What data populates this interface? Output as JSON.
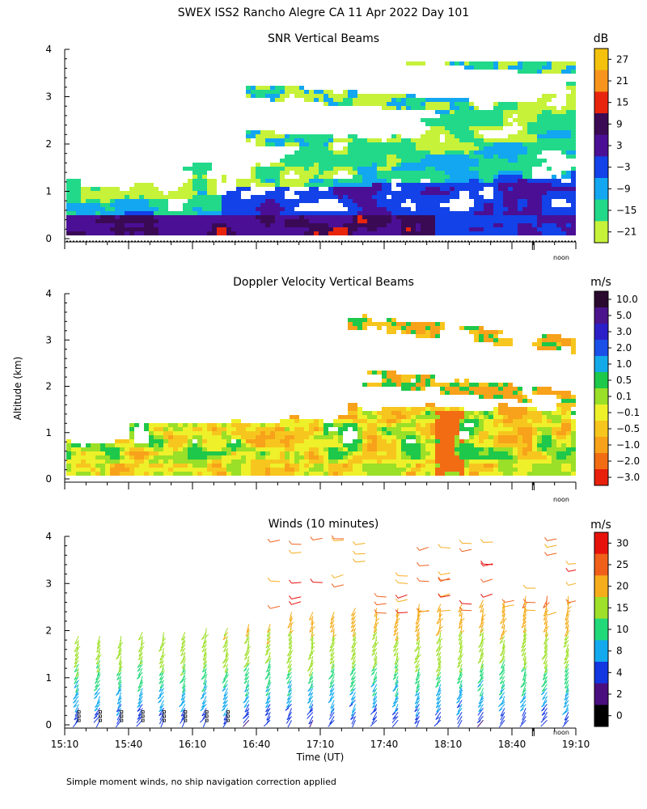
{
  "page_title": "SWEX ISS2 Rancho Alegre CA  11 Apr 2022 Day 101",
  "footer_note": "Simple moment winds, no ship navigation correction applied",
  "y_axis_label": "Altitude (km)",
  "x_axis_label": "Time (UT)",
  "noon_label": "noon",
  "chart_data": [
    {
      "type": "heatmap",
      "id": "snr",
      "title": "SNR Vertical Beams",
      "ylabel": "Altitude (km)",
      "ylim": [
        0,
        4
      ],
      "yticks": [
        "0",
        "1",
        "2",
        "3",
        "4"
      ],
      "xlim_minutes": [
        910,
        1150
      ],
      "colorbar": {
        "unit": "dB",
        "labels": [
          "27",
          "21",
          "15",
          "9",
          "3",
          "−3",
          "−9",
          "−15",
          "−21"
        ],
        "colors": [
          "#f4c20d",
          "#f7941d",
          "#e8250c",
          "#3a0a55",
          "#4b0f96",
          "#1242e8",
          "#12a7f0",
          "#22d98a",
          "#c6f23a"
        ]
      }
    },
    {
      "type": "heatmap",
      "id": "doppler",
      "title": "Doppler Velocity Vertical Beams",
      "ylabel": "Altitude (km)",
      "ylim": [
        0,
        4
      ],
      "yticks": [
        "0",
        "1",
        "2",
        "3",
        "4"
      ],
      "xlim_minutes": [
        910,
        1150
      ],
      "colorbar": {
        "unit": "m/s",
        "labels": [
          "10.0",
          "5.0",
          "3.0",
          "2.0",
          "1.0",
          "0.5",
          "0.1",
          "−0.1",
          "−0.5",
          "−1.0",
          "−2.0",
          "−3.0"
        ],
        "colors": [
          "#2a0a2e",
          "#4b148c",
          "#2c1fc7",
          "#1a4fe8",
          "#14a9e8",
          "#1ec84a",
          "#9adf28",
          "#eef02a",
          "#f7c61e",
          "#f7a21a",
          "#f26c14",
          "#e8200c"
        ]
      }
    },
    {
      "type": "scatter",
      "id": "winds",
      "title": "Winds (10 minutes)",
      "ylabel": "Altitude (km)",
      "xlabel": "Time (UT)",
      "ylim": [
        0,
        4
      ],
      "yticks": [
        "0",
        "1",
        "2",
        "3",
        "4"
      ],
      "xlim_minutes": [
        910,
        1150
      ],
      "xticks": [
        "15:10",
        "15:40",
        "16:10",
        "16:40",
        "17:10",
        "17:40",
        "18:10",
        "18:40",
        "19:10"
      ],
      "colorbar": {
        "unit": "m/s",
        "labels": [
          "30",
          "25",
          "20",
          "15",
          "10",
          "8",
          "4",
          "2",
          "0"
        ],
        "colors": [
          "#e8120c",
          "#f0601a",
          "#f5ad1c",
          "#9fe02a",
          "#22d97a",
          "#12a9ee",
          "#1236e0",
          "#4a0e7e",
          "#000000"
        ]
      }
    }
  ]
}
